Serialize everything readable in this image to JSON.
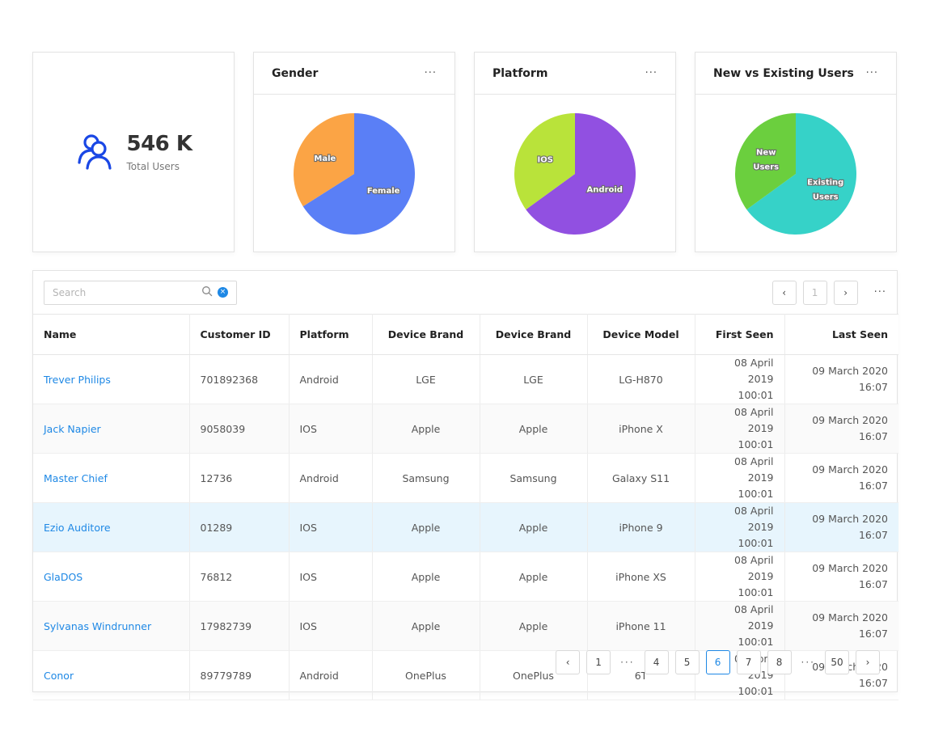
{
  "stats": {
    "total_value": "546 K",
    "total_label": "Total Users",
    "icon": "users-icon"
  },
  "cards": [
    {
      "title": "Gender",
      "more": "···"
    },
    {
      "title": "Platform",
      "more": "···"
    },
    {
      "title": "New vs Existing Users",
      "more": "···"
    }
  ],
  "charts": {
    "gender": {
      "type": "pie",
      "slices": [
        {
          "label": "Female",
          "value": 66,
          "color": "#5a7ff6"
        },
        {
          "label": "Male",
          "value": 34,
          "color": "#fba445"
        }
      ]
    },
    "platform": {
      "type": "pie",
      "slices": [
        {
          "label": "Android",
          "value": 65,
          "color": "#9150e1"
        },
        {
          "label": "IOS",
          "value": 35,
          "color": "#b9e33a"
        }
      ]
    },
    "new_existing": {
      "type": "pie",
      "slices": [
        {
          "label_lines": [
            "Existing",
            "Users"
          ],
          "value": 65,
          "color": "#36d2c8"
        },
        {
          "label_lines": [
            "New",
            "Users"
          ],
          "value": 35,
          "color": "#6bcf3e"
        }
      ]
    }
  },
  "toolbar": {
    "search_placeholder": "Search",
    "clear": "×",
    "prev": "‹",
    "next": "›",
    "page": "1",
    "more": "···"
  },
  "table": {
    "headers": [
      "Name",
      "Customer ID",
      "Platform",
      "Device Brand",
      "Device Brand",
      "Device Model",
      "First Seen",
      "Last Seen"
    ],
    "rows": [
      {
        "name": "Trever Philips",
        "id": "701892368",
        "platform": "Android",
        "brand1": "LGE",
        "brand2": "LGE",
        "model": "LG-H870",
        "first_date": "08 April 2019",
        "first_time": "100:01",
        "last_date": "09 March 2020",
        "last_time": "16:07"
      },
      {
        "name": "Jack Napier",
        "id": "9058039",
        "platform": "IOS",
        "brand1": "Apple",
        "brand2": "Apple",
        "model": "iPhone X",
        "first_date": "08 April 2019",
        "first_time": "100:01",
        "last_date": "09 March 2020",
        "last_time": "16:07"
      },
      {
        "name": "Master Chief",
        "id": "12736",
        "platform": "Android",
        "brand1": "Samsung",
        "brand2": "Samsung",
        "model": "Galaxy S11",
        "first_date": "08 April 2019",
        "first_time": "100:01",
        "last_date": "09 March 2020",
        "last_time": "16:07"
      },
      {
        "name": "Ezio Auditore",
        "id": "01289",
        "platform": "IOS",
        "brand1": "Apple",
        "brand2": "Apple",
        "model": "iPhone 9",
        "first_date": "08 April 2019",
        "first_time": "100:01",
        "last_date": "09 March 2020",
        "last_time": "16:07"
      },
      {
        "name": "GlaDOS",
        "id": "76812",
        "platform": "IOS",
        "brand1": "Apple",
        "brand2": "Apple",
        "model": "iPhone XS",
        "first_date": "08 April 2019",
        "first_time": "100:01",
        "last_date": "09 March 2020",
        "last_time": "16:07"
      },
      {
        "name": "Sylvanas Windrunner",
        "id": "17982739",
        "platform": "IOS",
        "brand1": "Apple",
        "brand2": "Apple",
        "model": "iPhone 11",
        "first_date": "08 April 2019",
        "first_time": "100:01",
        "last_date": "09 March 2020",
        "last_time": "16:07"
      },
      {
        "name": "Conor",
        "id": "89779789",
        "platform": "Android",
        "brand1": "OnePlus",
        "brand2": "OnePlus",
        "model": "6T",
        "first_date": "08 April 2019",
        "first_time": "100:01",
        "last_date": "09 March 2020",
        "last_time": "16:07"
      }
    ]
  },
  "pagination": {
    "prev": "‹",
    "next": "›",
    "ellipsis": "···",
    "pages": [
      "1",
      "4",
      "5",
      "6",
      "7",
      "8",
      "50"
    ],
    "current": "6"
  },
  "colors": {
    "accent": "#1e88e5",
    "row_highlight": "#e7f5fd"
  }
}
